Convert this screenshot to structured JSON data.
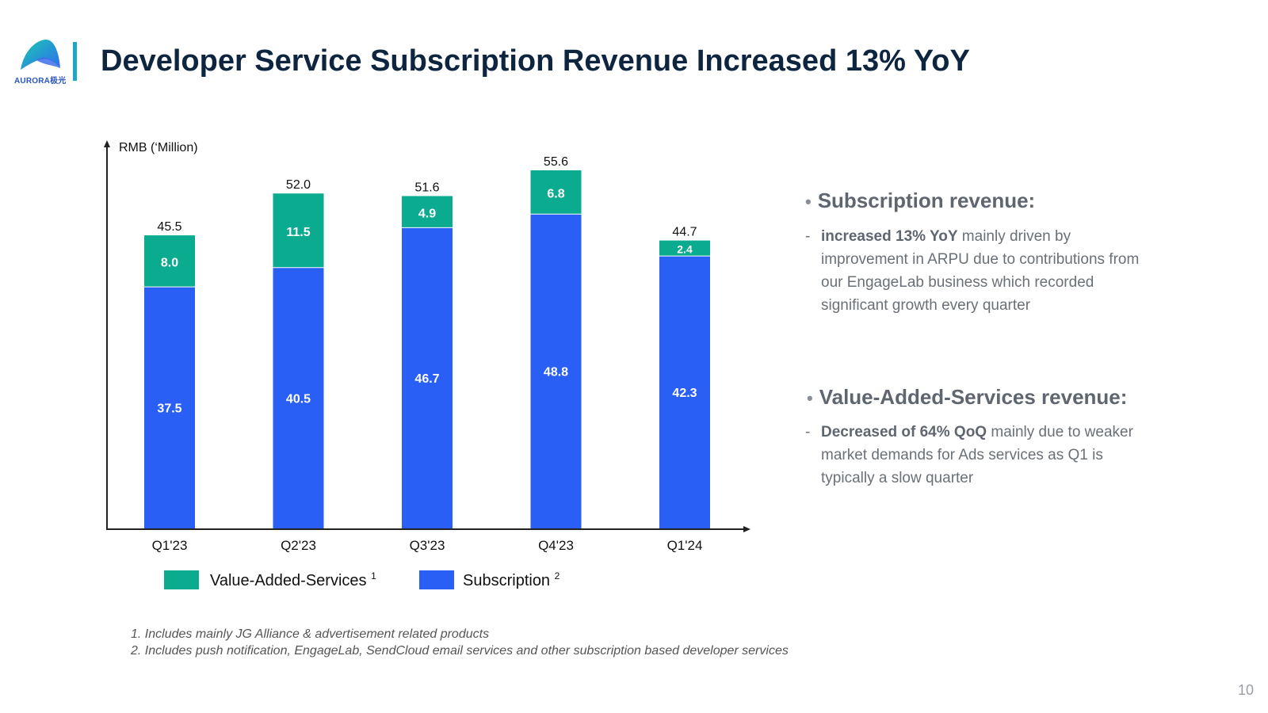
{
  "logo": {
    "brand_text": "AURORA极光"
  },
  "title": "Developer Service Subscription Revenue Increased 13% YoY",
  "colors": {
    "vas": "#0aab8e",
    "subscription": "#2a5ff6",
    "title": "#0e2540",
    "accent_bar": "#1ea7c7"
  },
  "chart_data": {
    "type": "bar",
    "stacked": true,
    "ylabel": "RMB (‘Million)",
    "categories": [
      "Q1'23",
      "Q2'23",
      "Q3'23",
      "Q4'23",
      "Q1'24"
    ],
    "series": [
      {
        "name": "Subscription",
        "values": [
          37.5,
          40.5,
          46.7,
          48.8,
          42.3
        ],
        "labels": [
          "37.5",
          "40.5",
          "46.7",
          "48.8",
          "42.3"
        ]
      },
      {
        "name": "Value-Added-Services",
        "values": [
          8.0,
          11.5,
          4.9,
          6.8,
          2.4
        ],
        "labels": [
          "8.0",
          "11.5",
          "4.9",
          "6.8",
          "2.4"
        ]
      }
    ],
    "totals": [
      "45.5",
      "52.0",
      "51.6",
      "55.6",
      "44.7"
    ],
    "ylim": [
      0,
      80
    ]
  },
  "legend": {
    "vas_label": "Value-Added-Services",
    "vas_note": "1",
    "subscription_label": "Subscription",
    "subscription_note": "2"
  },
  "footnotes": [
    "1. Includes mainly JG Alliance & advertisement related products",
    "2. Includes push notification, EngageLab, SendCloud email services and other subscription based developer services"
  ],
  "bullets": {
    "subscription_heading": "Subscription revenue:",
    "subscription_bold": "increased 13% YoY",
    "subscription_text": " mainly driven by improvement in ARPU due to contributions from our EngageLab business which recorded significant growth every quarter",
    "vas_heading": "Value-Added-Services revenue:",
    "vas_bold": "Decreased of 64% QoQ",
    "vas_text": "  mainly due to weaker market demands for Ads services as Q1 is typically a slow quarter",
    "bullet_symbol": "•",
    "dash_symbol": "-"
  },
  "page_number": "10"
}
